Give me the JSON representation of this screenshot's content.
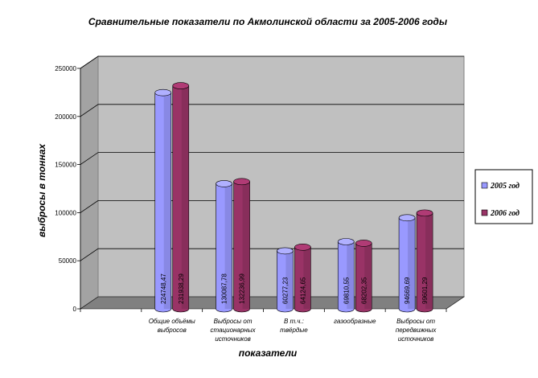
{
  "chart_data": {
    "type": "bar",
    "title": "Сравнительные показатели по Акмолинской области  за 2005-2006 годы",
    "xlabel": "показатели",
    "ylabel": "выбросы в тоннах",
    "ylim": [
      0,
      250000
    ],
    "yticks": [
      "0",
      "50000",
      "100000",
      "150000",
      "200000",
      "250000"
    ],
    "categories": [
      "",
      [
        "Общие объёмы",
        "выбросов"
      ],
      [
        "Выбросы от",
        "стационарных",
        "источников"
      ],
      [
        "В т.ч.:",
        "твёрдые"
      ],
      [
        "газообразные"
      ],
      [
        "Выбросы от",
        "передвижных",
        "источников"
      ]
    ],
    "series": [
      {
        "name": "2005 год",
        "color": "#9999ff",
        "values": [
          null,
          224748.47,
          130087.78,
          60277.23,
          69810.55,
          94669.69
        ],
        "labels": [
          "",
          "224748,47",
          "130087,78",
          "60277,23",
          "69810,55",
          "94669,69"
        ]
      },
      {
        "name": "2006 год",
        "color": "#993366",
        "values": [
          null,
          231938.29,
          132236.99,
          64124.65,
          68202.35,
          99601.29
        ],
        "labels": [
          "",
          "231938,29",
          "132236,99",
          "64124,65",
          "68202,35",
          "99601,29"
        ]
      }
    ],
    "grid": true,
    "legend_position": "right",
    "plot_background": "#c0c0c0",
    "floor_color": "#808080"
  }
}
